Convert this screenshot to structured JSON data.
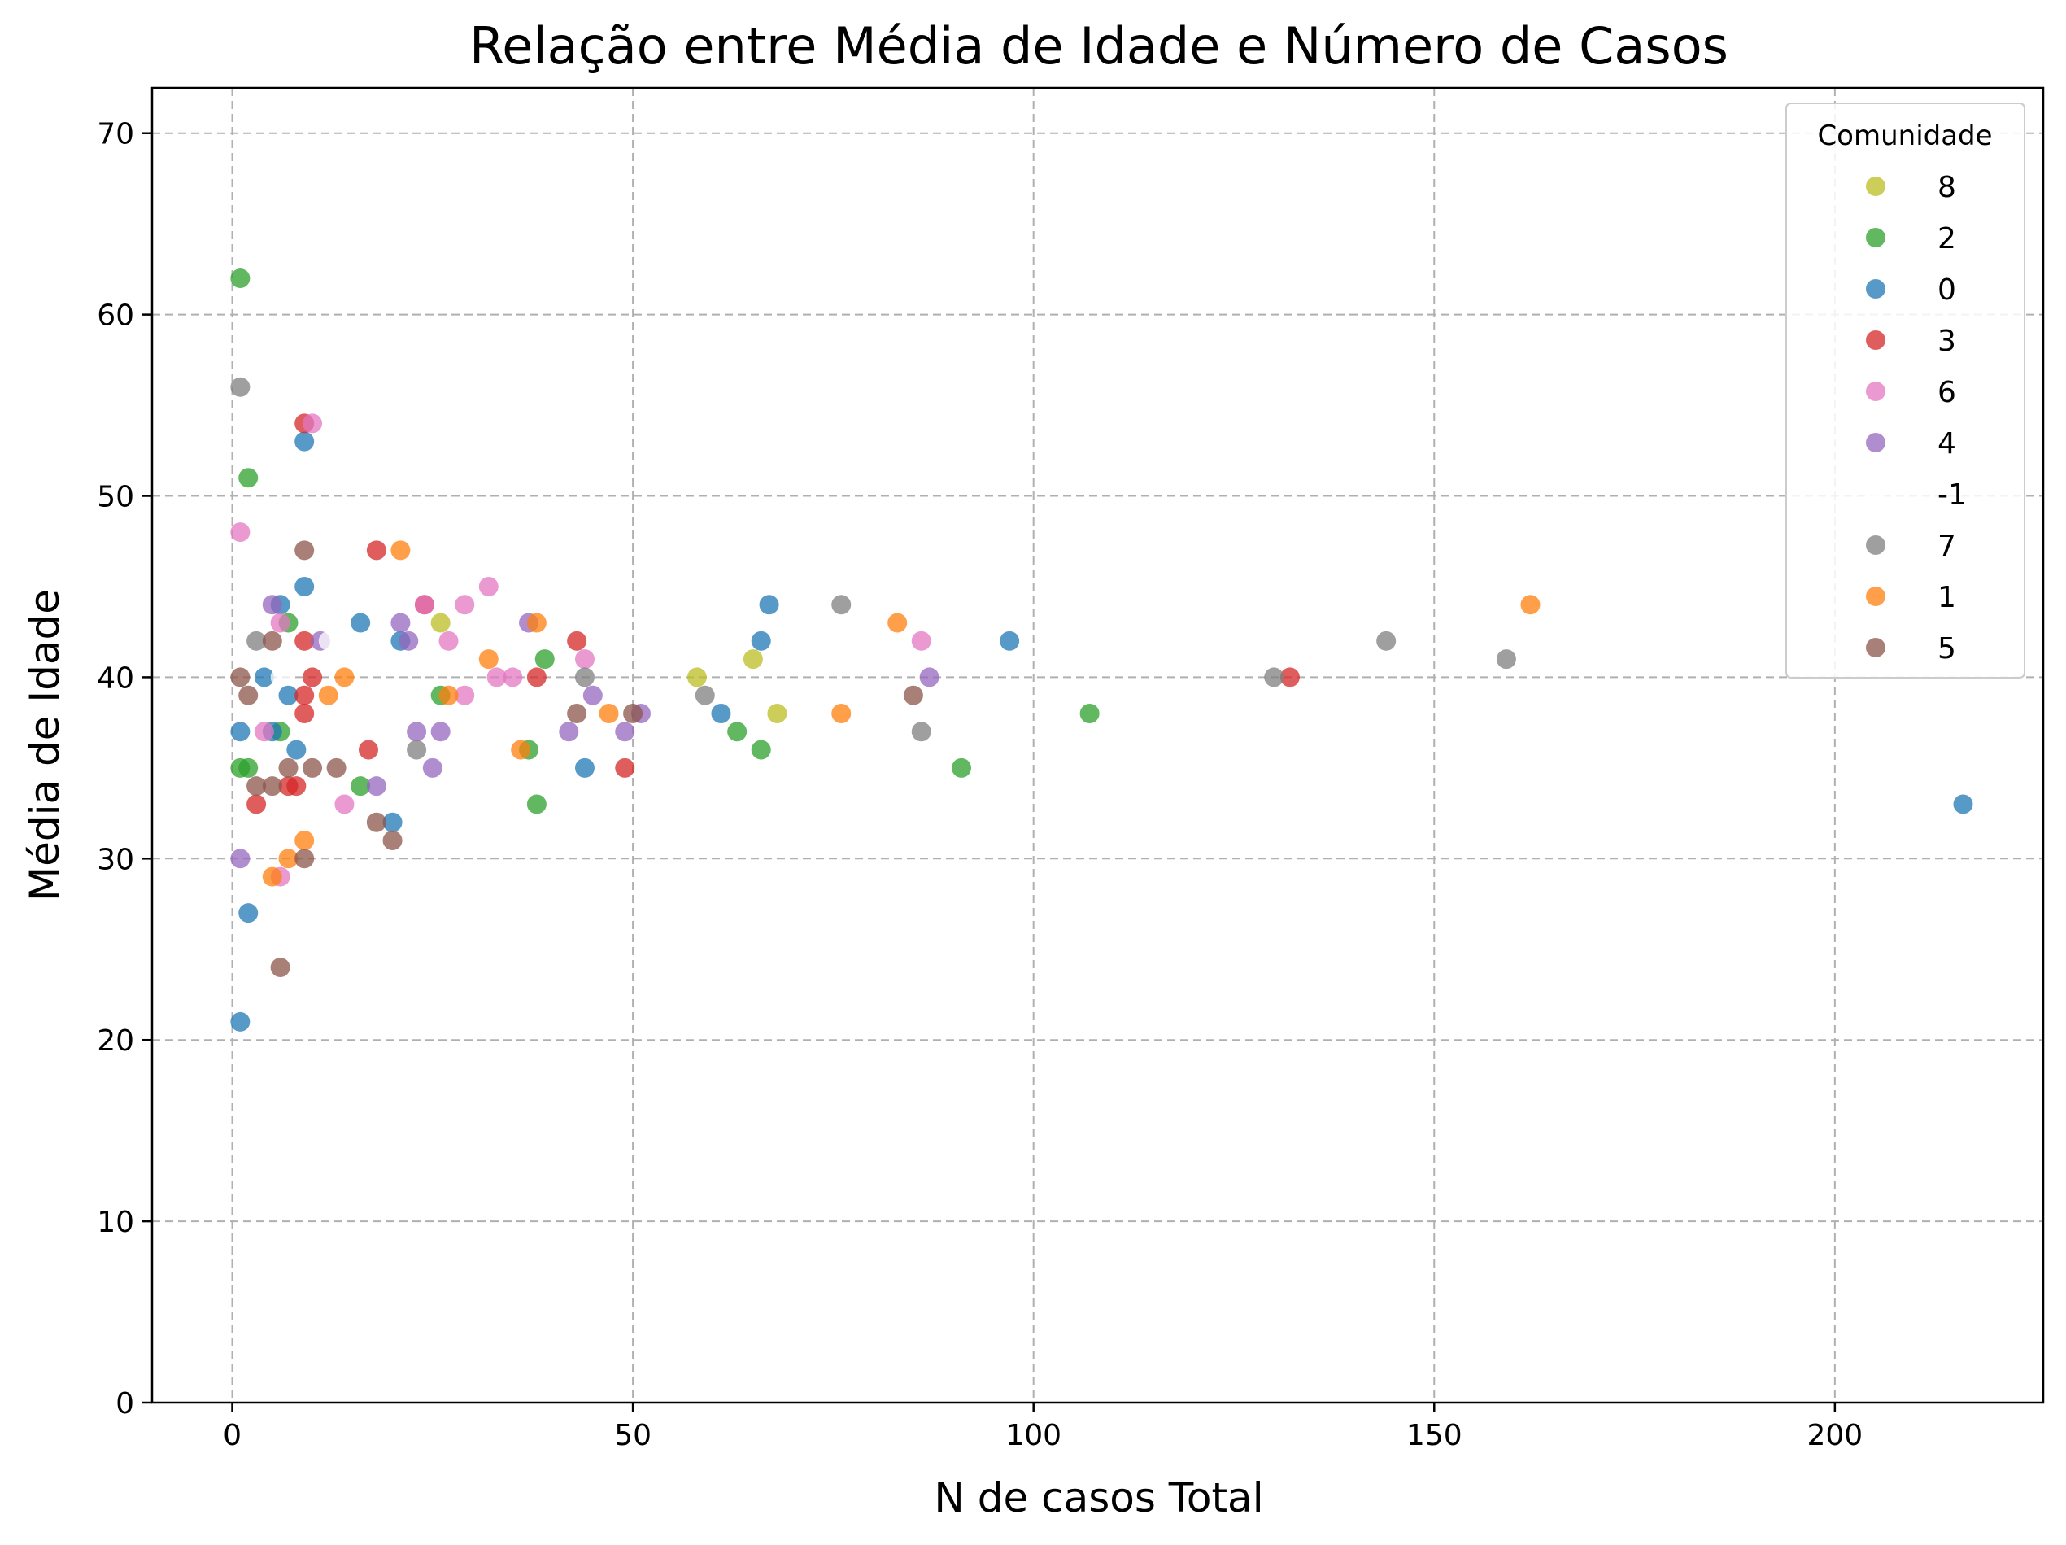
{
  "chart_data": {
    "type": "scatter",
    "title": "Relação entre Média de Idade e Número de Casos",
    "xlabel": "N de casos Total",
    "ylabel": "Média de Idade",
    "xlim": [
      -10,
      226
    ],
    "ylim": [
      0,
      72.5
    ],
    "xticks": [
      0,
      50,
      100,
      150,
      200
    ],
    "yticks": [
      0,
      10,
      20,
      30,
      40,
      50,
      60,
      70
    ],
    "grid": true,
    "legend": {
      "title": "Comunidade",
      "placement": "top-right"
    },
    "series": [
      {
        "name": "8",
        "color": "#bcbd22",
        "points": [
          [
            26,
            43
          ],
          [
            58,
            40
          ],
          [
            65,
            41
          ],
          [
            68,
            38
          ]
        ]
      },
      {
        "name": "2",
        "color": "#2ca02c",
        "points": [
          [
            1,
            62
          ],
          [
            2,
            51
          ],
          [
            1,
            35
          ],
          [
            2,
            35
          ],
          [
            6,
            37
          ],
          [
            7,
            43
          ],
          [
            16,
            34
          ],
          [
            26,
            39
          ],
          [
            37,
            36
          ],
          [
            38,
            33
          ],
          [
            39,
            41
          ],
          [
            63,
            37
          ],
          [
            66,
            36
          ],
          [
            91,
            35
          ],
          [
            107,
            38
          ]
        ]
      },
      {
        "name": "0",
        "color": "#1f77b4",
        "points": [
          [
            1,
            21
          ],
          [
            2,
            27
          ],
          [
            1,
            37
          ],
          [
            4,
            40
          ],
          [
            5,
            37
          ],
          [
            6,
            44
          ],
          [
            7,
            39
          ],
          [
            8,
            36
          ],
          [
            9,
            45
          ],
          [
            9,
            53
          ],
          [
            16,
            43
          ],
          [
            20,
            32
          ],
          [
            21,
            42
          ],
          [
            44,
            35
          ],
          [
            61,
            38
          ],
          [
            66,
            42
          ],
          [
            67,
            44
          ],
          [
            97,
            42
          ],
          [
            216,
            33
          ]
        ]
      },
      {
        "name": "3",
        "color": "#d62728",
        "points": [
          [
            3,
            33
          ],
          [
            7,
            34
          ],
          [
            8,
            34
          ],
          [
            9,
            38
          ],
          [
            9,
            39
          ],
          [
            9,
            42
          ],
          [
            9,
            54
          ],
          [
            10,
            40
          ],
          [
            17,
            36
          ],
          [
            18,
            47
          ],
          [
            24,
            44
          ],
          [
            38,
            40
          ],
          [
            43,
            42
          ],
          [
            49,
            35
          ],
          [
            132,
            40
          ]
        ]
      },
      {
        "name": "6",
        "color": "#e377c2",
        "points": [
          [
            1,
            48
          ],
          [
            4,
            37
          ],
          [
            6,
            29
          ],
          [
            6,
            43
          ],
          [
            10,
            54
          ],
          [
            14,
            33
          ],
          [
            24,
            44
          ],
          [
            27,
            42
          ],
          [
            29,
            39
          ],
          [
            29,
            44
          ],
          [
            32,
            45
          ],
          [
            33,
            40
          ],
          [
            35,
            40
          ],
          [
            44,
            41
          ],
          [
            86,
            42
          ]
        ]
      },
      {
        "name": "4",
        "color": "#9467bd",
        "points": [
          [
            1,
            30
          ],
          [
            5,
            44
          ],
          [
            11,
            42
          ],
          [
            18,
            34
          ],
          [
            21,
            43
          ],
          [
            22,
            42
          ],
          [
            23,
            37
          ],
          [
            25,
            35
          ],
          [
            26,
            37
          ],
          [
            37,
            43
          ],
          [
            42,
            37
          ],
          [
            45,
            39
          ],
          [
            49,
            37
          ],
          [
            51,
            38
          ],
          [
            87,
            40
          ]
        ]
      },
      {
        "name": "-1",
        "color": "#ffffff",
        "points": [
          [
            6,
            40
          ],
          [
            8,
            41
          ],
          [
            12,
            42
          ]
        ]
      },
      {
        "name": "7",
        "color": "#7f7f7f",
        "points": [
          [
            1,
            56
          ],
          [
            3,
            42
          ],
          [
            23,
            36
          ],
          [
            44,
            40
          ],
          [
            59,
            39
          ],
          [
            76,
            44
          ],
          [
            86,
            37
          ],
          [
            130,
            40
          ],
          [
            144,
            42
          ],
          [
            159,
            41
          ]
        ]
      },
      {
        "name": "1",
        "color": "#ff7f0e",
        "points": [
          [
            5,
            29
          ],
          [
            7,
            30
          ],
          [
            9,
            31
          ],
          [
            12,
            39
          ],
          [
            14,
            40
          ],
          [
            21,
            47
          ],
          [
            27,
            39
          ],
          [
            32,
            41
          ],
          [
            36,
            36
          ],
          [
            38,
            43
          ],
          [
            47,
            38
          ],
          [
            76,
            38
          ],
          [
            83,
            43
          ],
          [
            162,
            44
          ]
        ]
      },
      {
        "name": "5",
        "color": "#8c564b",
        "points": [
          [
            1,
            40
          ],
          [
            2,
            39
          ],
          [
            3,
            34
          ],
          [
            5,
            34
          ],
          [
            5,
            42
          ],
          [
            6,
            24
          ],
          [
            7,
            35
          ],
          [
            9,
            30
          ],
          [
            9,
            47
          ],
          [
            10,
            35
          ],
          [
            13,
            35
          ],
          [
            18,
            32
          ],
          [
            20,
            31
          ],
          [
            43,
            38
          ],
          [
            50,
            38
          ],
          [
            85,
            39
          ]
        ]
      }
    ]
  }
}
